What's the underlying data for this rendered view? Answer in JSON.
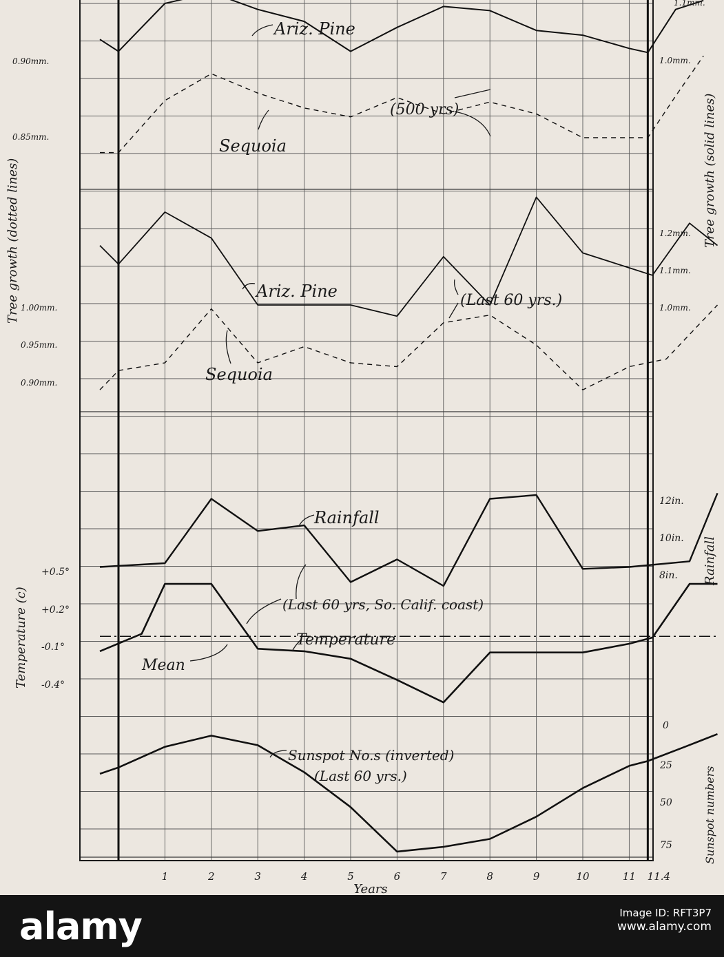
{
  "chart_data": {
    "type": "line",
    "x": {
      "tick_labels": [
        "1",
        "2",
        "3",
        "4",
        "5",
        "6",
        "7",
        "8",
        "9",
        "10",
        "11",
        "11.4"
      ],
      "label": "Years"
    },
    "panels": [
      {
        "name": "tree-growth-500yrs",
        "left_ticks": [
          "0.90mm.",
          "0.85mm."
        ],
        "right_ticks": [
          "1.1mm.",
          "1.0mm."
        ],
        "annotation": "(500 yrs)",
        "series": [
          {
            "name": "Ariz. Pine",
            "style": "solid",
            "unit": "mm",
            "points": [
              [
                -0.4,
                1.04
              ],
              [
                0,
                1.02
              ],
              [
                1,
                1.1
              ],
              [
                2,
                1.118
              ],
              [
                3,
                1.09
              ],
              [
                4,
                1.07
              ],
              [
                5,
                1.02
              ],
              [
                6,
                1.06
              ],
              [
                7,
                1.095
              ],
              [
                8,
                1.088
              ],
              [
                9,
                1.055
              ],
              [
                10,
                1.047
              ],
              [
                11,
                1.025
              ],
              [
                11.4,
                1.018
              ],
              [
                12,
                1.09
              ],
              [
                12.6,
                1.105
              ]
            ]
          },
          {
            "name": "Sequoia",
            "style": "dotted",
            "unit": "mm",
            "points": [
              [
                -0.4,
                0.84
              ],
              [
                0,
                0.84
              ],
              [
                1,
                0.875
              ],
              [
                2,
                0.893
              ],
              [
                3,
                0.88
              ],
              [
                4,
                0.87
              ],
              [
                5,
                0.864
              ],
              [
                6,
                0.877
              ],
              [
                7,
                0.866
              ],
              [
                8,
                0.874
              ],
              [
                9,
                0.866
              ],
              [
                10,
                0.85
              ],
              [
                11,
                0.85
              ],
              [
                11.4,
                0.85
              ],
              [
                12,
                0.878
              ],
              [
                12.6,
                0.905
              ]
            ]
          }
        ]
      },
      {
        "name": "tree-growth-last-60yrs",
        "left_ticks": [
          "1.00mm.",
          "0.95mm.",
          "0.90mm."
        ],
        "right_ticks": [
          "1.2mm.",
          "1.1mm.",
          "1.0mm."
        ],
        "annotation": "(Last 60 yrs.)",
        "series": [
          {
            "name": "Ariz. Pine",
            "style": "solid",
            "unit": "mm",
            "points": [
              [
                -0.4,
                1.16
              ],
              [
                0,
                1.11
              ],
              [
                1,
                1.25
              ],
              [
                2,
                1.18
              ],
              [
                3,
                1.0
              ],
              [
                4,
                1.0
              ],
              [
                5,
                1.0
              ],
              [
                6,
                0.97
              ],
              [
                7,
                1.13
              ],
              [
                8,
                1.0
              ],
              [
                9,
                1.29
              ],
              [
                10,
                1.14
              ],
              [
                11,
                1.1
              ],
              [
                11.5,
                1.08
              ],
              [
                12.3,
                1.22
              ],
              [
                12.9,
                1.16
              ]
            ]
          },
          {
            "name": "Sequoia",
            "style": "dotted",
            "unit": "mm",
            "points": [
              [
                -0.4,
                0.89
              ],
              [
                0,
                0.915
              ],
              [
                1,
                0.925
              ],
              [
                2,
                0.995
              ],
              [
                3,
                0.925
              ],
              [
                4,
                0.946
              ],
              [
                5,
                0.925
              ],
              [
                6,
                0.92
              ],
              [
                7,
                0.977
              ],
              [
                8,
                0.987
              ],
              [
                9,
                0.948
              ],
              [
                10,
                0.89
              ],
              [
                11,
                0.92
              ],
              [
                11.8,
                0.93
              ],
              [
                12.9,
                1.0
              ]
            ]
          }
        ]
      },
      {
        "name": "rainfall-temperature",
        "left_label": "Temperature (c)",
        "left_ticks": [
          "+0.5°",
          "+0.2°",
          "-0.1°",
          "-0.4°"
        ],
        "right_label": "Rainfall",
        "right_ticks": [
          "12in.",
          "10in.",
          "8in."
        ],
        "annotation": "(Last 60 yrs, So. Calif. coast)",
        "mean_label": "Mean",
        "series": [
          {
            "name": "Rainfall",
            "unit": "in",
            "points": [
              [
                -0.4,
                8.6
              ],
              [
                1,
                8.8
              ],
              [
                2,
                12.2
              ],
              [
                3,
                10.5
              ],
              [
                4,
                10.8
              ],
              [
                5,
                7.8
              ],
              [
                6,
                9.0
              ],
              [
                7,
                7.6
              ],
              [
                8,
                12.2
              ],
              [
                9,
                12.4
              ],
              [
                10,
                8.5
              ],
              [
                11,
                8.6
              ],
              [
                12.3,
                8.9
              ],
              [
                12.9,
                12.5
              ]
            ]
          },
          {
            "name": "Temperature",
            "unit": "°C",
            "points": [
              [
                -0.4,
                -0.14
              ],
              [
                0.5,
                0.0
              ],
              [
                1,
                0.4
              ],
              [
                2,
                0.4
              ],
              [
                3,
                -0.12
              ],
              [
                4,
                -0.14
              ],
              [
                5,
                -0.2
              ],
              [
                6,
                -0.37
              ],
              [
                7,
                -0.55
              ],
              [
                8,
                -0.15
              ],
              [
                9,
                -0.15
              ],
              [
                10,
                -0.15
              ],
              [
                11,
                -0.08
              ],
              [
                11.5,
                -0.03
              ],
              [
                12.3,
                0.4
              ],
              [
                12.9,
                0.4
              ]
            ]
          },
          {
            "name": "Mean",
            "style": "dash-dot",
            "unit": "°C",
            "points": [
              [
                -0.4,
                -0.02
              ],
              [
                12.9,
                -0.02
              ]
            ]
          }
        ]
      },
      {
        "name": "sunspots",
        "right_label": "Sunspot numbers",
        "right_ticks": [
          "0",
          "25",
          "50",
          "75"
        ],
        "inverted": true,
        "annotation": "(Last 60 yrs.)",
        "series": [
          {
            "name": "Sunspot No.s (inverted)",
            "unit": "count",
            "points": [
              [
                -0.4,
                29
              ],
              [
                0,
                25
              ],
              [
                1,
                12
              ],
              [
                2,
                5
              ],
              [
                3,
                11
              ],
              [
                4,
                28
              ],
              [
                5,
                50
              ],
              [
                6,
                78
              ],
              [
                7,
                75
              ],
              [
                8,
                70
              ],
              [
                9,
                56
              ],
              [
                10,
                38
              ],
              [
                11,
                24
              ],
              [
                11.4,
                21
              ],
              [
                12.2,
                12
              ],
              [
                12.9,
                4
              ]
            ]
          }
        ]
      }
    ],
    "cycle_lines_at": [
      0,
      11.4
    ],
    "grid": true
  },
  "watermark": {
    "logo": "alamy",
    "image_id": "Image ID: RFT3P7",
    "site": "www.alamy.com"
  }
}
